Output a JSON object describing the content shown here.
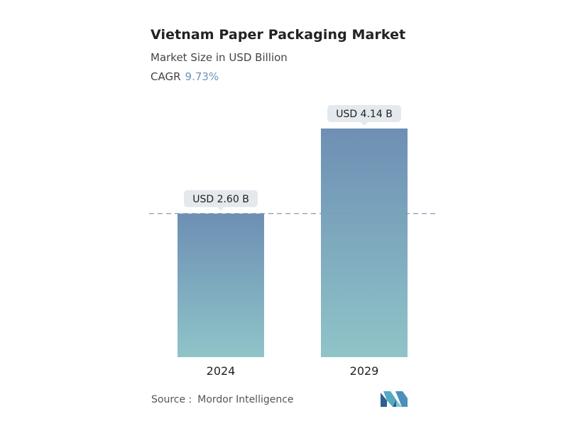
{
  "header": {
    "title": "Vietnam Paper Packaging Market",
    "subtitle": "Market Size in USD Billion",
    "cagr_label": "CAGR",
    "cagr_value": "9.73%"
  },
  "chart_data": {
    "type": "bar",
    "title": "Vietnam Paper Packaging Market",
    "subtitle": "Market Size in USD Billion",
    "categories": [
      "2024",
      "2029"
    ],
    "values": [
      2.6,
      4.14
    ],
    "data_labels": [
      "USD 2.60 B",
      "USD 4.14 B"
    ],
    "ylim": [
      0,
      4.14
    ],
    "grid": false,
    "reference_line": {
      "value": 2.6,
      "style": "dashed"
    },
    "colors": {
      "bar_top": "#6d8fb4",
      "bar_bottom": "#8fc4c8",
      "label_bg": "#e4e9ee",
      "reference_line": "#7f9bb3"
    }
  },
  "footer": {
    "source_label": "Source :",
    "source_value": "Mordor Intelligence",
    "logo_icon": "mordor-intelligence-logo-icon"
  }
}
